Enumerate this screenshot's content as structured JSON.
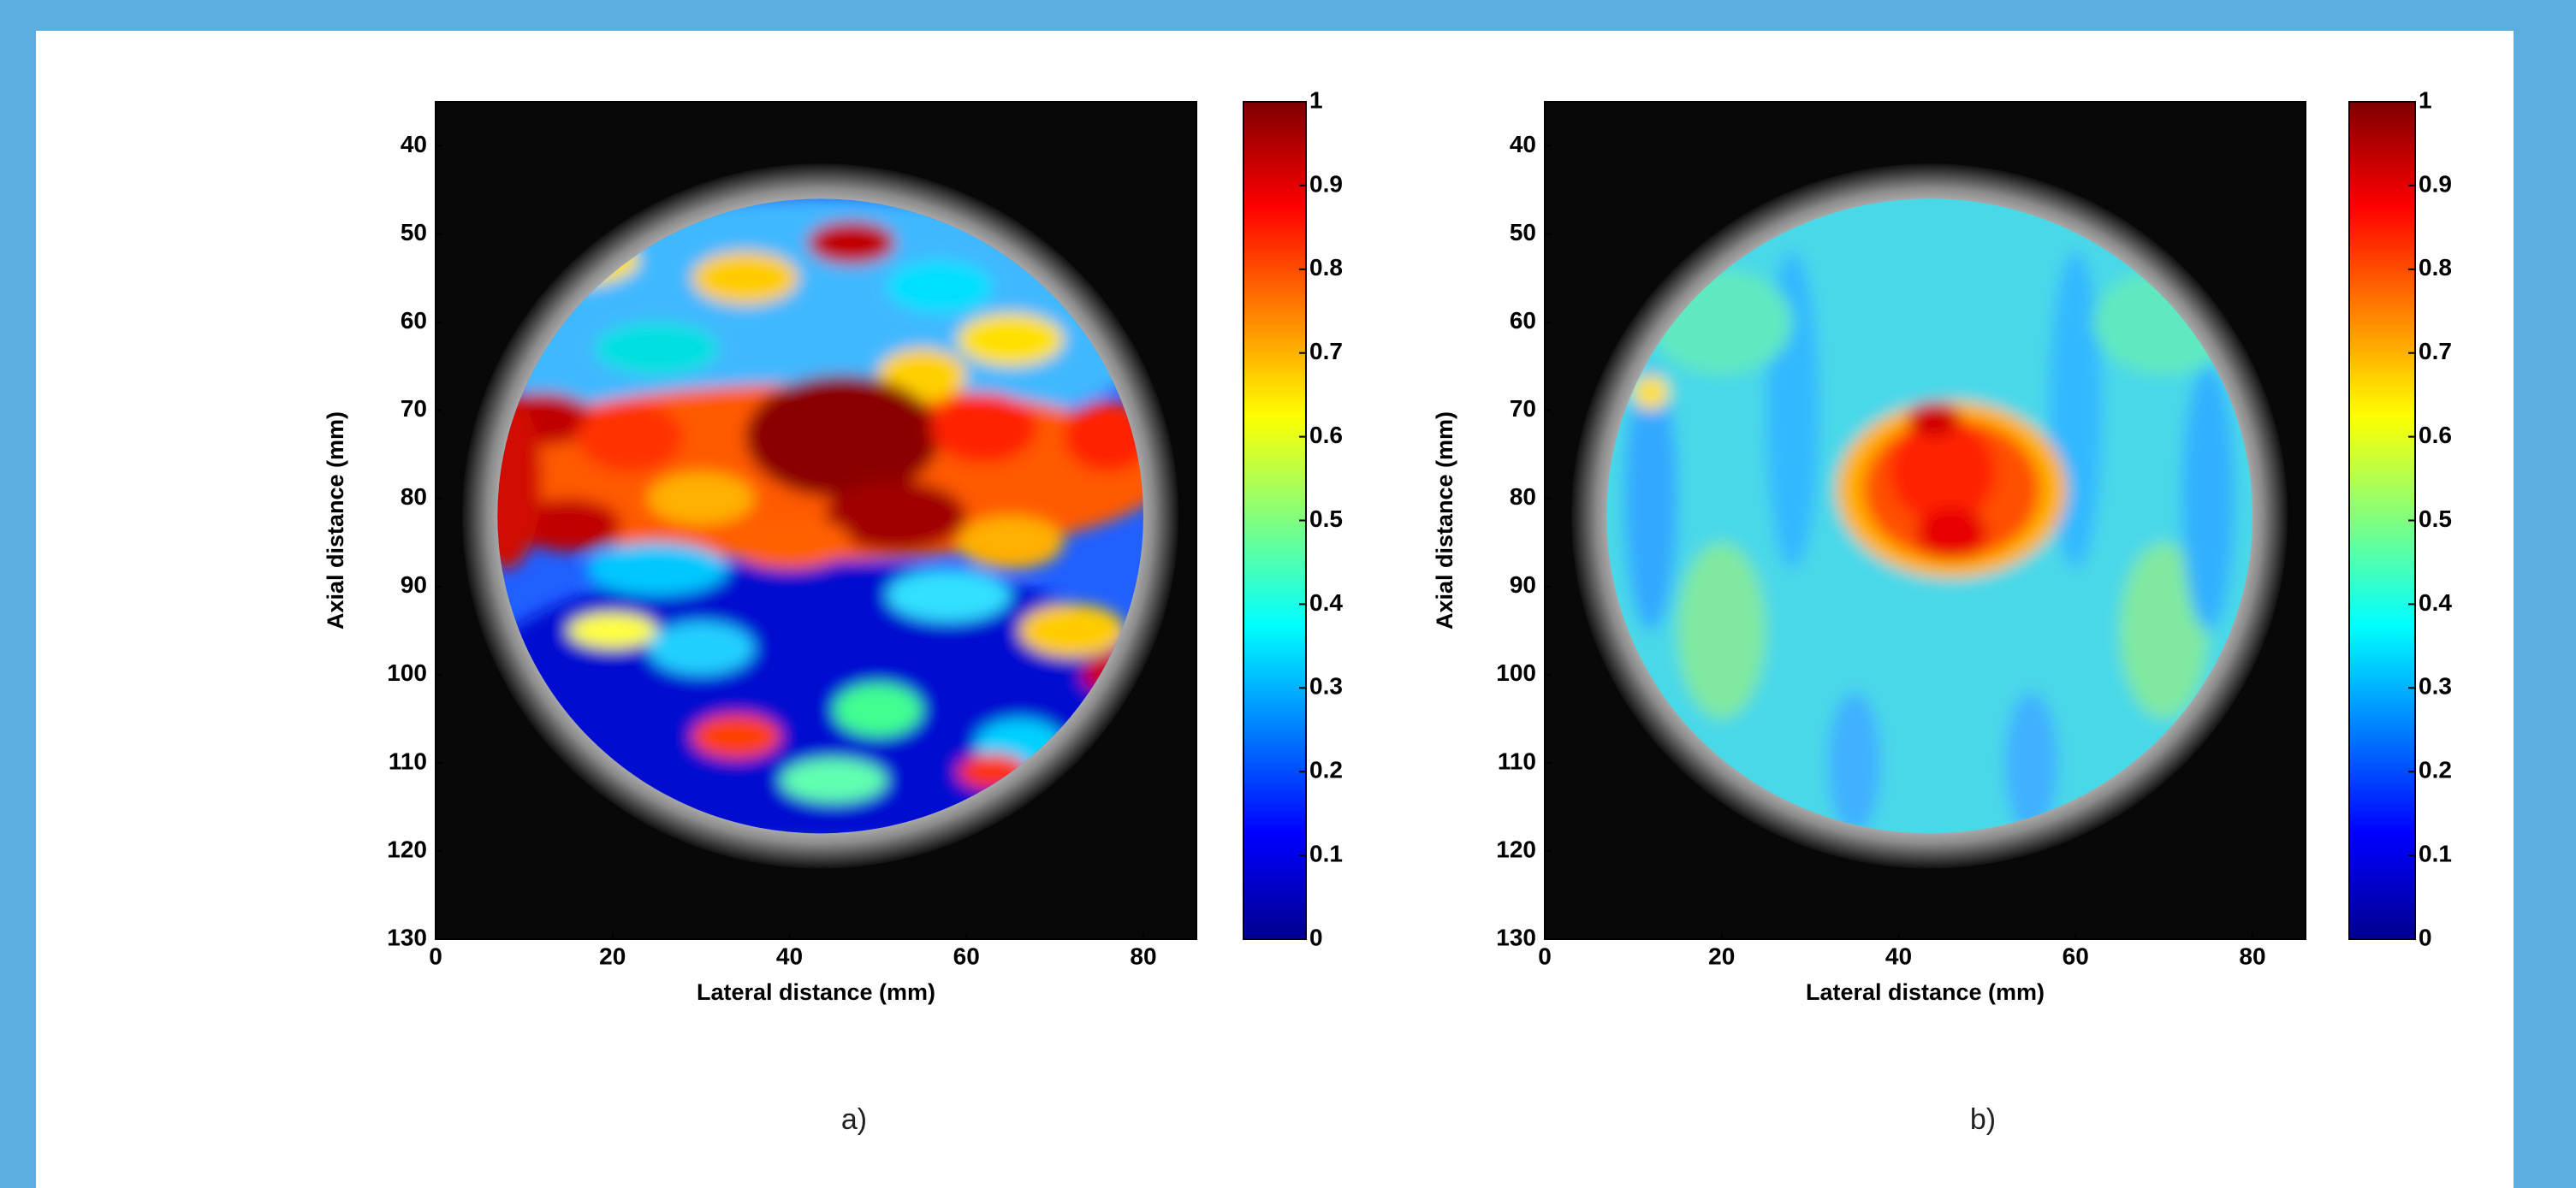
{
  "chart_data": [
    {
      "type": "heatmap",
      "caption": "a)",
      "xlabel": "Lateral distance (mm)",
      "ylabel": "Axial distance (mm)",
      "xlim": [
        0,
        86
      ],
      "xticks": [
        0,
        20,
        40,
        60,
        80
      ],
      "ylim": [
        130,
        35
      ],
      "yticks": [
        40,
        50,
        60,
        70,
        80,
        90,
        100,
        110,
        120,
        130
      ],
      "colormap": "jet",
      "clim": [
        0,
        1
      ],
      "cticks": [
        0,
        0.1,
        0.2,
        0.3,
        0.4,
        0.5,
        0.6,
        0.7,
        0.8,
        0.9,
        1
      ]
    },
    {
      "type": "heatmap",
      "caption": "b)",
      "xlabel": "Lateral distance (mm)",
      "ylabel": "Axial distance (mm)",
      "xlim": [
        0,
        86
      ],
      "xticks": [
        0,
        20,
        40,
        60,
        80
      ],
      "ylim": [
        130,
        35
      ],
      "yticks": [
        40,
        50,
        60,
        70,
        80,
        90,
        100,
        110,
        120,
        130
      ],
      "colormap": "jet",
      "clim": [
        0,
        1
      ],
      "cticks": [
        0,
        0.1,
        0.2,
        0.3,
        0.4,
        0.5,
        0.6,
        0.7,
        0.8,
        0.9,
        1
      ]
    }
  ]
}
